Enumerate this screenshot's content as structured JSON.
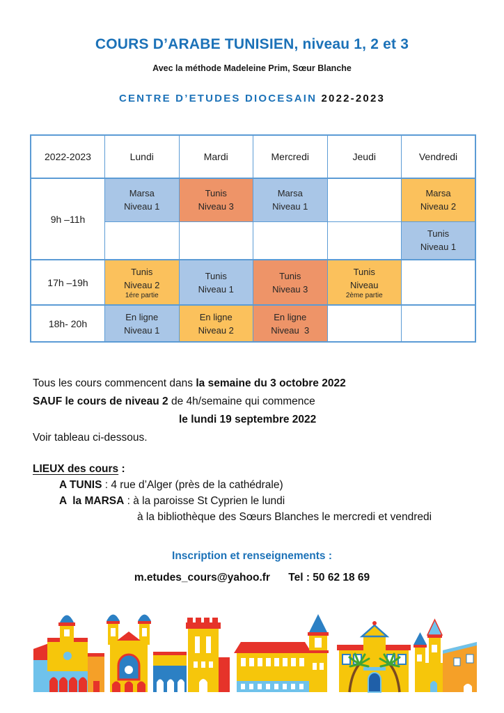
{
  "header": {
    "title": "COURS D’ARABE TUNISIEN, niveau 1, 2 et 3",
    "subtitle": "Avec la méthode Madeleine Prim, Sœur Blanche",
    "org_name": "CENTRE D’ETUDES DIOCESAIN",
    "org_year": "2022-2023"
  },
  "colors": {
    "accent_blue": "#1C72B8",
    "table_border": "#5B9BD5",
    "cell_blue": "#A9C6E7",
    "cell_salmon": "#EE9468",
    "cell_amber": "#FBC15C"
  },
  "schedule": {
    "columns": [
      "2022-2023",
      "Lundi",
      "Mardi",
      "Mercredi",
      "Jeudi",
      "Vendredi"
    ],
    "rows": [
      {
        "time": "9h –11h",
        "time_rowspan": 2,
        "major": true,
        "cells": [
          {
            "lines": [
              "Marsa",
              "Niveau 1"
            ],
            "color": "blue"
          },
          {
            "lines": [
              "Tunis",
              "Niveau 3"
            ],
            "color": "salmon"
          },
          {
            "lines": [
              "Marsa",
              "Niveau 1"
            ],
            "color": "blue"
          },
          {
            "lines": [],
            "color": "white"
          },
          {
            "lines": [
              "Marsa",
              "Niveau 2"
            ],
            "color": "amber"
          }
        ]
      },
      {
        "time": null,
        "major": false,
        "cells": [
          {
            "lines": [],
            "color": "white"
          },
          {
            "lines": [],
            "color": "white"
          },
          {
            "lines": [],
            "color": "white"
          },
          {
            "lines": [],
            "color": "white"
          },
          {
            "lines": [
              "Tunis",
              "Niveau 1"
            ],
            "color": "blue"
          }
        ]
      },
      {
        "time": "17h –19h",
        "time_rowspan": 1,
        "major": true,
        "cells": [
          {
            "lines": [
              "Tunis",
              "Niveau 2"
            ],
            "small": "1ére partie",
            "color": "amber"
          },
          {
            "lines": [
              "Tunis",
              "Niveau 1"
            ],
            "color": "blue"
          },
          {
            "lines": [
              "Tunis",
              "Niveau 3"
            ],
            "color": "salmon"
          },
          {
            "lines": [
              "Tunis",
              "Niveau"
            ],
            "small": "2ème partie",
            "color": "amber"
          },
          {
            "lines": [],
            "color": "white"
          }
        ]
      },
      {
        "time": "18h- 20h",
        "time_rowspan": 1,
        "major": true,
        "cells": [
          {
            "lines": [
              "En ligne",
              "Niveau 1"
            ],
            "color": "blue"
          },
          {
            "lines": [
              "En ligne",
              "Niveau 2"
            ],
            "color": "amber"
          },
          {
            "lines": [
              "En ligne",
              "Niveau  3"
            ],
            "color": "salmon"
          },
          {
            "lines": [],
            "color": "white"
          },
          {
            "lines": [],
            "color": "white"
          }
        ]
      }
    ]
  },
  "notes": {
    "l1_normal": "Tous les cours commencent dans ",
    "l1_bold": "la semaine du 3 octobre 2022",
    "l2_bold": "SAUF le cours de niveau 2",
    "l2_normal": " de 4h/semaine qui commence",
    "l3_bold": "le lundi 19 septembre 2022",
    "l4": "Voir tableau ci-dessous."
  },
  "locations": {
    "heading": "LIEUX des cours",
    "heading_colon": " :",
    "tunis_label": "A TUNIS",
    "tunis_rest": " : 4 rue d’Alger (près de la cathédrale)",
    "marsa_label": "A  la MARSA",
    "marsa_rest": " : à la paroisse St Cyprien le lundi",
    "marsa_line2": "à la bibliothèque des Sœurs Blanches le mercredi et vendredi"
  },
  "contact": {
    "heading": "Inscription et renseignements :",
    "email": "m.etudes_cours@yahoo.fr",
    "phone": "Tel : 50 62 18 69"
  },
  "footer_illustration": {
    "name": "colorful-churches-skyline-illustration"
  }
}
